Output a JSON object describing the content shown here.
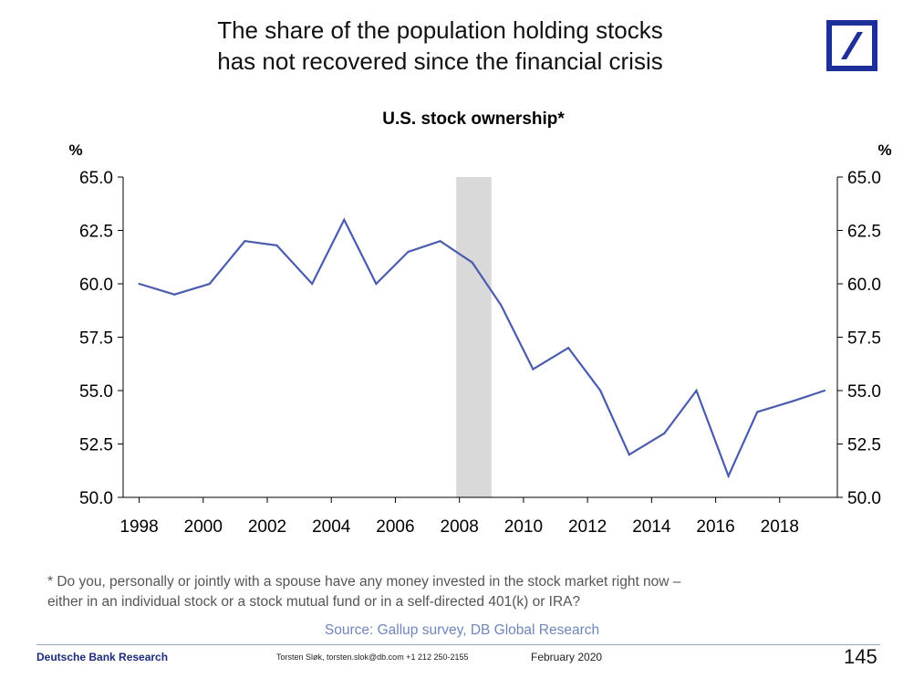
{
  "headline": {
    "line1": "The share of the population holding stocks",
    "line2": "has not recovered since the financial crisis"
  },
  "brand": {
    "logo_icon": "deutsche-bank-slash-logo-icon",
    "logo_color": "#1f2f9a"
  },
  "chart_data": {
    "type": "line",
    "title": "U.S. stock ownership*",
    "ylabel_left": "%",
    "ylabel_right": "%",
    "xlim": [
      1997.5,
      2019.8
    ],
    "ylim": [
      50.0,
      65.0
    ],
    "x_ticks": [
      1998,
      2000,
      2002,
      2004,
      2006,
      2008,
      2010,
      2012,
      2014,
      2016,
      2018
    ],
    "y_ticks": [
      "50.0",
      "52.5",
      "55.0",
      "57.5",
      "60.0",
      "62.5",
      "65.0"
    ],
    "grid": false,
    "recession_shading": [
      2007.9,
      2009.0
    ],
    "series": [
      {
        "color": "#4b5cae",
        "x": [
          1998.0,
          1999.1,
          2000.2,
          2001.3,
          2002.3,
          2003.4,
          2004.4,
          2005.4,
          2006.4,
          2007.4,
          2008.4,
          2009.3,
          2010.3,
          2011.4,
          2012.4,
          2013.3,
          2014.4,
          2015.4,
          2016.4,
          2017.3,
          2018.4,
          2019.4
        ],
        "values": [
          60.0,
          59.5,
          60.0,
          62.0,
          61.8,
          60.0,
          63.0,
          60.0,
          61.5,
          62.0,
          61.0,
          59.0,
          56.0,
          57.0,
          55.0,
          52.0,
          53.0,
          55.0,
          51.0,
          54.0,
          54.5,
          55.0
        ]
      }
    ]
  },
  "footnote": {
    "line1": "* Do you, personally or jointly with a spouse have any money invested in the stock market right now –",
    "line2": "either in an individual stock or a stock mutual fund or in a self-directed 401(k) or IRA?"
  },
  "source": "Source: Gallup survey, DB Global Research",
  "footer": {
    "publisher": "Deutsche Bank Research",
    "contact": "Torsten Sløk, torsten.slok@db.com  +1 212 250-2155",
    "date": "February 2020",
    "page_number": "145"
  }
}
